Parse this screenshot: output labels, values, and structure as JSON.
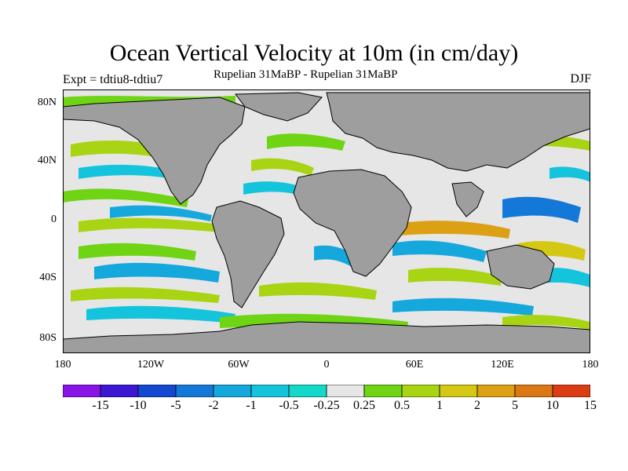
{
  "title": "Ocean Vertical Velocity at 10m (in cm/day)",
  "experiment": "Expt = tdtiu8-tdtiu7",
  "subtitle": "Rupelian  31MaBP - Rupelian  31MaBP",
  "season": "DJF",
  "axes": {
    "y_ticks": [
      "80N",
      "40N",
      "0",
      "40S",
      "80S"
    ],
    "x_ticks": [
      "180",
      "120W",
      "60W",
      "0",
      "60E",
      "120E",
      "180"
    ]
  },
  "colors": {
    "land": "#9e9e9e",
    "ocean_neutral": "#e6e6e6"
  },
  "colorbar": {
    "labels": [
      "-15",
      "-10",
      "-5",
      "-2",
      "-1",
      "-0.5",
      "-0.25",
      "0.25",
      "0.5",
      "1",
      "2",
      "5",
      "10",
      "15"
    ],
    "colors": [
      "#8a14e8",
      "#3c18d4",
      "#1448d0",
      "#1478d8",
      "#14a8dc",
      "#14c4dc",
      "#14d8c8",
      "#e6e6e6",
      "#6ed414",
      "#a8d414",
      "#d4c814",
      "#dca014",
      "#dc7814",
      "#dc3c14"
    ]
  }
}
